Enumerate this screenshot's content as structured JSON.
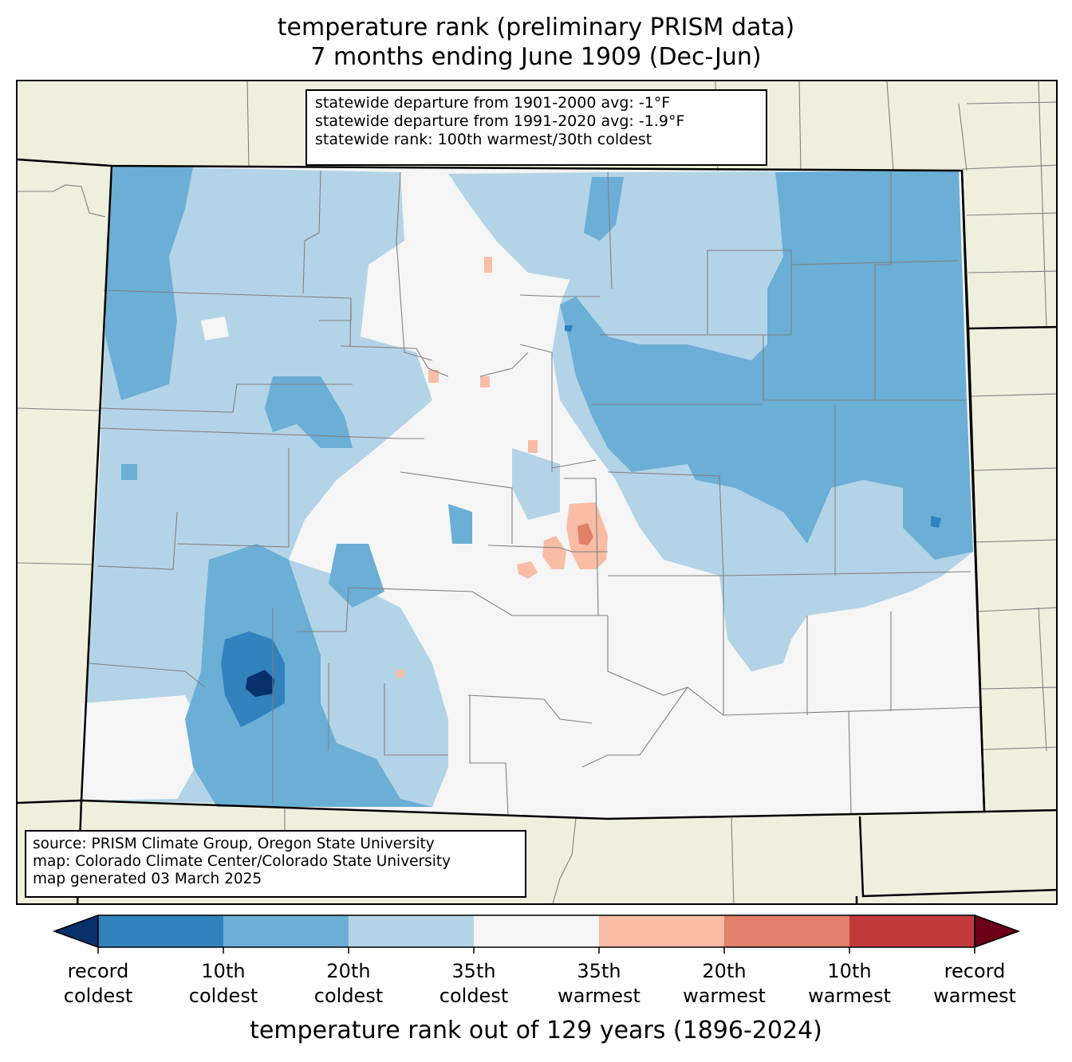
{
  "title": {
    "line1": "temperature rank (preliminary PRISM data)",
    "line2": "7 months ending June 1909 (Dec-Jun)"
  },
  "stats": {
    "line1": "statewide departure from 1901-2000 avg: -1°F",
    "line2": "statewide departure from 1991-2020 avg: -1.9°F",
    "line3": "statewide rank: 100th warmest/30th coldest"
  },
  "source": {
    "line1": "source: PRISM Climate Group, Oregon State University",
    "line2": "map: Colorado Climate Center/Colorado State University",
    "line3": "map generated 03 March 2025"
  },
  "colorbar": {
    "label": "temperature rank out of 129 years (1896-2024)",
    "ticks": [
      {
        "line1": "record",
        "line2": "coldest"
      },
      {
        "line1": "10th",
        "line2": "coldest"
      },
      {
        "line1": "20th",
        "line2": "coldest"
      },
      {
        "line1": "35th",
        "line2": "coldest"
      },
      {
        "line1": "35th",
        "line2": "warmest"
      },
      {
        "line1": "20th",
        "line2": "warmest"
      },
      {
        "line1": "10th",
        "line2": "warmest"
      },
      {
        "line1": "record",
        "line2": "warmest"
      }
    ],
    "colors": {
      "below_record_cold": "#08306b",
      "record_to_10th_coldest": "#3182bd",
      "10th_to_20th_coldest": "#6baed6",
      "20th_to_35th_coldest": "#b3d4e7",
      "near_normal": "#f5f5f5",
      "35th_to_20th_warmest": "#f9bca4",
      "20th_to_10th_warmest": "#e2806a",
      "10th_to_record_warmest": "#c23a3c",
      "above_record_warm": "#6b0016"
    }
  },
  "map": {
    "background_color": "#efefdd",
    "county_line_color": "#808080",
    "state_line_color": "#000000"
  }
}
